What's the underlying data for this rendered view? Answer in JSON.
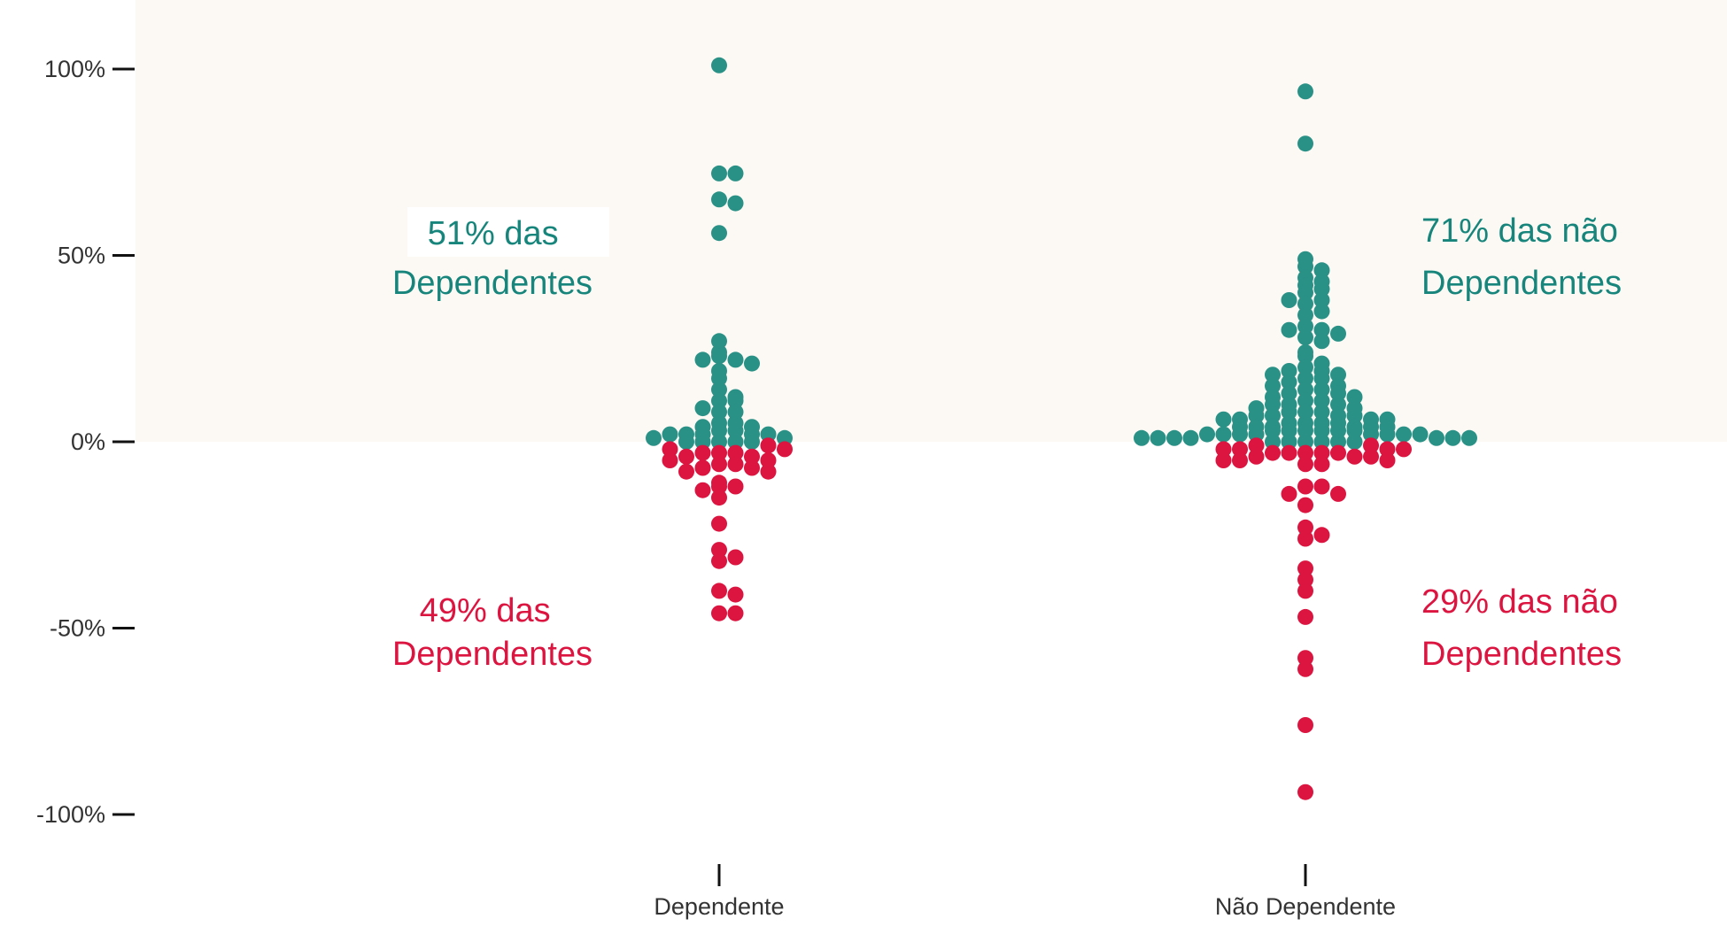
{
  "chart_data": {
    "type": "scatter",
    "subtype": "swarm",
    "categories": [
      "Dependente",
      "Não Dependente"
    ],
    "ylim": [
      -1.15,
      1.0
    ],
    "yticks": [
      1.0,
      0.5,
      0.0,
      -0.5,
      -1.0
    ],
    "ytick_labels": [
      "100%",
      "50%",
      "0%",
      "-50%",
      "-100%"
    ],
    "grid": false,
    "positive_region_shaded": true,
    "colors": {
      "positive": "#2a9187",
      "negative": "#dc1440",
      "positive_text": "#17857b",
      "negative_text": "#dc1440",
      "shade": "#fcf9f4"
    },
    "series": [
      {
        "category": "Dependente",
        "positive_share": "51%",
        "negative_share": "49%",
        "values": [
          1.01,
          0.72,
          0.72,
          0.65,
          0.64,
          0.56,
          0.27,
          0.24,
          0.23,
          0.22,
          0.22,
          0.21,
          0.19,
          0.17,
          0.14,
          0.12,
          0.11,
          0.11,
          0.09,
          0.08,
          0.08,
          0.05,
          0.05,
          0.04,
          0.04,
          0.03,
          0.03,
          0.02,
          0.02,
          0.02,
          0.02,
          0.02,
          0.01,
          0.01,
          0.0,
          0.0,
          0.0,
          0.0,
          0.0,
          -0.01,
          -0.02,
          -0.02,
          -0.03,
          -0.03,
          -0.03,
          -0.04,
          -0.04,
          -0.05,
          -0.05,
          -0.06,
          -0.06,
          -0.07,
          -0.07,
          -0.08,
          -0.08,
          -0.11,
          -0.12,
          -0.12,
          -0.13,
          -0.15,
          -0.22,
          -0.29,
          -0.31,
          -0.32,
          -0.4,
          -0.41,
          -0.46,
          -0.46
        ]
      },
      {
        "category": "Não Dependente",
        "positive_share": "71%",
        "negative_share": "29%",
        "values": [
          0.94,
          0.8,
          0.49,
          0.47,
          0.46,
          0.44,
          0.43,
          0.42,
          0.41,
          0.4,
          0.38,
          0.38,
          0.37,
          0.35,
          0.34,
          0.31,
          0.3,
          0.3,
          0.29,
          0.28,
          0.27,
          0.24,
          0.23,
          0.21,
          0.2,
          0.19,
          0.19,
          0.18,
          0.18,
          0.17,
          0.17,
          0.16,
          0.15,
          0.15,
          0.14,
          0.14,
          0.13,
          0.13,
          0.12,
          0.12,
          0.11,
          0.11,
          0.1,
          0.1,
          0.1,
          0.09,
          0.09,
          0.08,
          0.08,
          0.08,
          0.07,
          0.07,
          0.07,
          0.07,
          0.06,
          0.06,
          0.06,
          0.06,
          0.05,
          0.05,
          0.05,
          0.05,
          0.04,
          0.04,
          0.04,
          0.04,
          0.04,
          0.04,
          0.03,
          0.03,
          0.03,
          0.03,
          0.03,
          0.03,
          0.02,
          0.02,
          0.02,
          0.02,
          0.02,
          0.02,
          0.02,
          0.02,
          0.01,
          0.01,
          0.01,
          0.01,
          0.01,
          0.01,
          0.01,
          0.0,
          0.0,
          0.0,
          0.0,
          0.0,
          0.0,
          -0.01,
          -0.01,
          -0.02,
          -0.02,
          -0.02,
          -0.02,
          -0.03,
          -0.03,
          -0.03,
          -0.03,
          -0.03,
          -0.04,
          -0.04,
          -0.04,
          -0.05,
          -0.05,
          -0.05,
          -0.06,
          -0.06,
          -0.12,
          -0.12,
          -0.14,
          -0.14,
          -0.17,
          -0.23,
          -0.25,
          -0.26,
          -0.34,
          -0.37,
          -0.4,
          -0.47,
          -0.58,
          -0.61,
          -0.76,
          -0.94
        ]
      }
    ],
    "annotations": [
      {
        "id": "dep_pos",
        "line1": "51% das",
        "line2": "Dependentes",
        "tone": "positive"
      },
      {
        "id": "dep_neg",
        "line1": "49% das",
        "line2": "Dependentes",
        "tone": "negative"
      },
      {
        "id": "ndep_pos",
        "line1": "71% das não",
        "line2": "Dependentes",
        "tone": "positive"
      },
      {
        "id": "ndep_neg",
        "line1": "29% das não",
        "line2": "Dependentes",
        "tone": "negative"
      }
    ]
  }
}
